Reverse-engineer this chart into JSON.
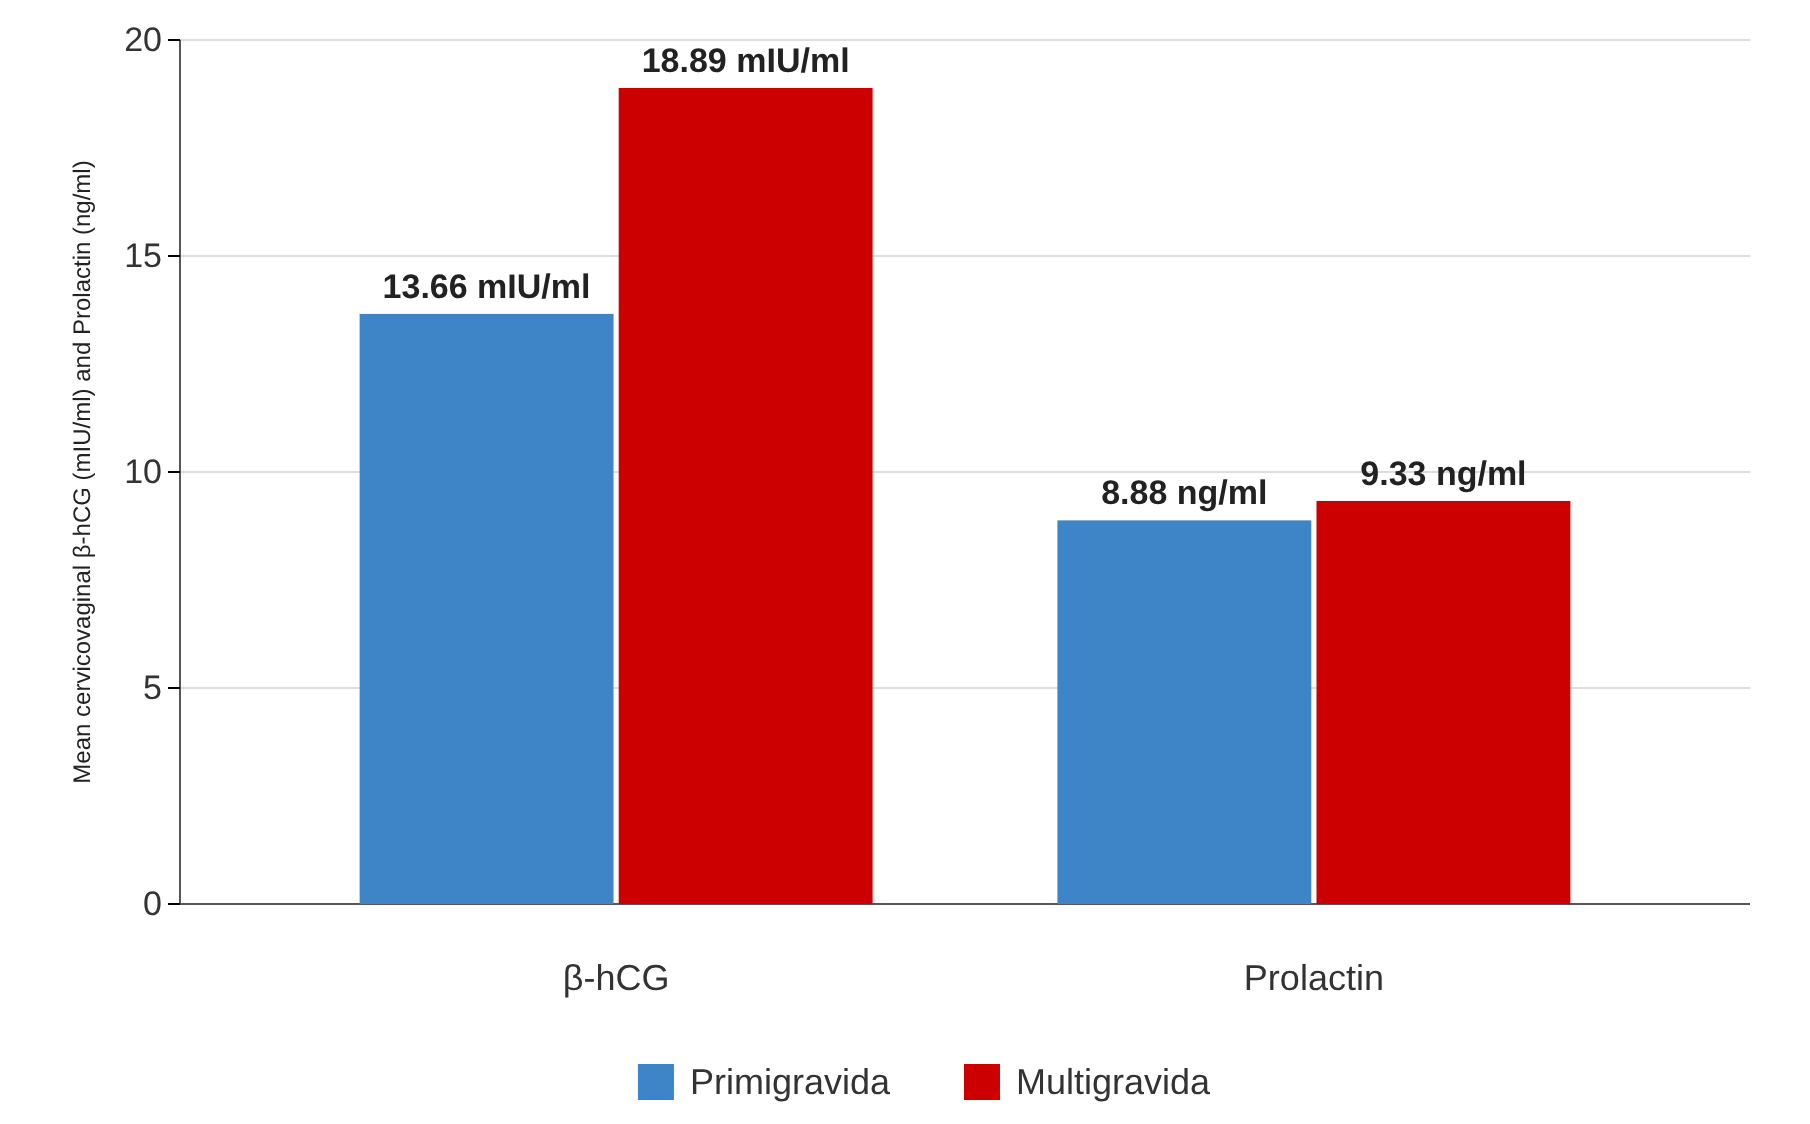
{
  "chart_data": {
    "type": "bar",
    "ylabel": "Mean cervicovaginal β-hCG (mIU/ml) and Prolactin (ng/ml)",
    "categories": [
      "β-hCG",
      "Prolactin"
    ],
    "series": [
      {
        "name": "Primigravida",
        "color": "#3d85c6",
        "values": [
          13.66,
          8.88
        ],
        "value_labels": [
          "13.66 mIU/ml",
          "8.88 ng/ml"
        ]
      },
      {
        "name": "Multigravida",
        "color": "#cc0000",
        "values": [
          18.89,
          9.33
        ],
        "value_labels": [
          "18.89 mIU/ml",
          "9.33 ng/ml"
        ]
      }
    ],
    "ylim": [
      0,
      20
    ],
    "yticks": [
      0,
      5,
      10,
      15,
      20
    ],
    "grid": "y",
    "legend": "bottom"
  }
}
